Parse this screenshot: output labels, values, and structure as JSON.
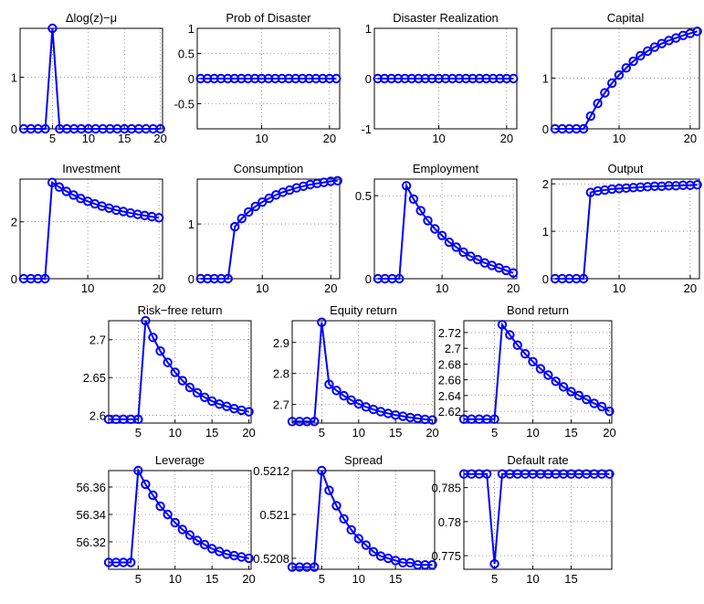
{
  "chart_data": [
    {
      "type": "line",
      "title": "Δlog(z)−μ",
      "color": "#0000ff",
      "grid": true,
      "x": [
        1,
        2,
        3,
        4,
        5,
        6,
        7,
        8,
        9,
        10,
        11,
        12,
        13,
        14,
        15,
        16,
        17,
        18,
        19,
        20
      ],
      "values": [
        0,
        0,
        0,
        0,
        1.95,
        0,
        0,
        0,
        0,
        0,
        0,
        0,
        0,
        0,
        0,
        0,
        0,
        0,
        0,
        0
      ],
      "xlim": [
        0.5,
        20.3
      ],
      "ylim": [
        0,
        1.95
      ],
      "xticks": [
        5,
        10,
        15,
        20
      ],
      "yticks": [
        0,
        1
      ]
    },
    {
      "type": "line",
      "title": "Prob of Disaster",
      "color": "#0000ff",
      "grid": true,
      "x": [
        1,
        2,
        3,
        4,
        5,
        6,
        7,
        8,
        9,
        10,
        11,
        12,
        13,
        14,
        15,
        16,
        17,
        18,
        19,
        20,
        21
      ],
      "values": [
        0,
        0,
        0,
        0,
        0,
        0,
        0,
        0,
        0,
        0,
        0,
        0,
        0,
        0,
        0,
        0,
        0,
        0,
        0,
        0,
        0
      ],
      "xlim": [
        0.5,
        21.5
      ],
      "ylim": [
        -1,
        1
      ],
      "xticks": [
        10,
        20
      ],
      "yticks": [
        -0.5,
        0,
        0.5,
        1
      ]
    },
    {
      "type": "line",
      "title": "Disaster Realization",
      "color": "#0000ff",
      "grid": true,
      "x": [
        1,
        2,
        3,
        4,
        5,
        6,
        7,
        8,
        9,
        10,
        11,
        12,
        13,
        14,
        15,
        16,
        17,
        18,
        19,
        20,
        21
      ],
      "values": [
        0,
        0,
        0,
        0,
        0,
        0,
        0,
        0,
        0,
        0,
        0,
        0,
        0,
        0,
        0,
        0,
        0,
        0,
        0,
        0,
        0
      ],
      "xlim": [
        0.5,
        21.5
      ],
      "ylim": [
        -1,
        1
      ],
      "xticks": [
        10,
        20
      ],
      "yticks": [
        -1,
        0,
        1
      ]
    },
    {
      "type": "line",
      "title": "Capital",
      "color": "#0000ff",
      "grid": true,
      "x": [
        1,
        2,
        3,
        4,
        5,
        6,
        7,
        8,
        9,
        10,
        11,
        12,
        13,
        14,
        15,
        16,
        17,
        18,
        19,
        20,
        21
      ],
      "values": [
        0,
        0,
        0,
        0,
        0,
        0.25,
        0.5,
        0.71,
        0.9,
        1.06,
        1.2,
        1.33,
        1.44,
        1.53,
        1.61,
        1.68,
        1.74,
        1.79,
        1.84,
        1.88,
        1.92
      ],
      "xlim": [
        0.5,
        21.3
      ],
      "ylim": [
        0,
        1.98
      ],
      "xticks": [
        10,
        20
      ],
      "yticks": [
        0,
        1
      ]
    },
    {
      "type": "line",
      "title": "Investment",
      "color": "#0000ff",
      "grid": true,
      "x": [
        1,
        2,
        3,
        4,
        5,
        6,
        7,
        8,
        9,
        10,
        11,
        12,
        13,
        14,
        15,
        16,
        17,
        18,
        19,
        20
      ],
      "values": [
        0,
        0,
        0,
        0,
        3.38,
        3.22,
        3.07,
        2.94,
        2.82,
        2.72,
        2.63,
        2.55,
        2.48,
        2.41,
        2.36,
        2.31,
        2.26,
        2.22,
        2.18,
        2.14
      ],
      "xlim": [
        0.5,
        20.5
      ],
      "ylim": [
        0,
        3.5
      ],
      "xticks": [
        10,
        20
      ],
      "yticks": [
        0,
        2
      ]
    },
    {
      "type": "line",
      "title": "Consumption",
      "color": "#0000ff",
      "grid": true,
      "x": [
        1,
        2,
        3,
        4,
        5,
        6,
        7,
        8,
        9,
        10,
        11,
        12,
        13,
        14,
        15,
        16,
        17,
        18,
        19,
        20,
        21
      ],
      "values": [
        0,
        0,
        0,
        0,
        0,
        0.95,
        1.1,
        1.22,
        1.32,
        1.4,
        1.47,
        1.53,
        1.58,
        1.62,
        1.66,
        1.69,
        1.72,
        1.74,
        1.76,
        1.78,
        1.79
      ],
      "xlim": [
        0.5,
        21.3
      ],
      "ylim": [
        0,
        1.82
      ],
      "xticks": [
        10,
        20
      ],
      "yticks": [
        0,
        1
      ]
    },
    {
      "type": "line",
      "title": "Employment",
      "color": "#0000ff",
      "grid": true,
      "x": [
        1,
        2,
        3,
        4,
        5,
        6,
        7,
        8,
        9,
        10,
        11,
        12,
        13,
        14,
        15,
        16,
        17,
        18,
        19,
        20
      ],
      "values": [
        0,
        0,
        0,
        0,
        0.56,
        0.48,
        0.41,
        0.35,
        0.3,
        0.26,
        0.22,
        0.19,
        0.16,
        0.135,
        0.115,
        0.095,
        0.08,
        0.065,
        0.05,
        0.035
      ],
      "xlim": [
        0.5,
        20.5
      ],
      "ylim": [
        0,
        0.6
      ],
      "xticks": [
        10,
        20
      ],
      "yticks": [
        0,
        0.5
      ]
    },
    {
      "type": "line",
      "title": "Output",
      "color": "#0000ff",
      "grid": true,
      "x": [
        1,
        2,
        3,
        4,
        5,
        6,
        7,
        8,
        9,
        10,
        11,
        12,
        13,
        14,
        15,
        16,
        17,
        18,
        19,
        20,
        21
      ],
      "values": [
        0,
        0,
        0,
        0,
        0,
        1.82,
        1.85,
        1.87,
        1.89,
        1.9,
        1.91,
        1.92,
        1.93,
        1.94,
        1.95,
        1.95,
        1.96,
        1.96,
        1.97,
        1.97,
        1.98
      ],
      "xlim": [
        0.5,
        21.3
      ],
      "ylim": [
        0,
        2.1
      ],
      "xticks": [
        10,
        20
      ],
      "yticks": [
        0,
        1,
        2
      ]
    },
    {
      "type": "line",
      "title": "Risk−free return",
      "color": "#0000ff",
      "grid": true,
      "x": [
        1,
        2,
        3,
        4,
        5,
        6,
        7,
        8,
        9,
        10,
        11,
        12,
        13,
        14,
        15,
        16,
        17,
        18,
        19,
        20
      ],
      "values": [
        2.595,
        2.595,
        2.595,
        2.595,
        2.595,
        2.725,
        2.703,
        2.685,
        2.67,
        2.657,
        2.646,
        2.637,
        2.63,
        2.624,
        2.619,
        2.615,
        2.612,
        2.609,
        2.607,
        2.605
      ],
      "xlim": [
        1,
        20.3
      ],
      "ylim": [
        2.59,
        2.725
      ],
      "xticks": [
        5,
        10,
        15,
        20
      ],
      "yticks": [
        2.6,
        2.65,
        2.7
      ]
    },
    {
      "type": "line",
      "title": "Equity return",
      "color": "#0000ff",
      "grid": true,
      "x": [
        1,
        2,
        3,
        4,
        5,
        6,
        7,
        8,
        9,
        10,
        11,
        12,
        13,
        14,
        15,
        16,
        17,
        18,
        19,
        20
      ],
      "values": [
        2.645,
        2.645,
        2.645,
        2.645,
        2.965,
        2.765,
        2.745,
        2.728,
        2.714,
        2.702,
        2.692,
        2.684,
        2.677,
        2.671,
        2.666,
        2.662,
        2.658,
        2.655,
        2.652,
        2.65
      ],
      "xlim": [
        1,
        20.3
      ],
      "ylim": [
        2.64,
        2.97
      ],
      "xticks": [
        5,
        10,
        15,
        20
      ],
      "yticks": [
        2.7,
        2.8,
        2.9
      ]
    },
    {
      "type": "line",
      "title": "Bond return",
      "color": "#0000ff",
      "grid": true,
      "x": [
        1,
        2,
        3,
        4,
        5,
        6,
        7,
        8,
        9,
        10,
        11,
        12,
        13,
        14,
        15,
        16,
        17,
        18,
        19,
        20
      ],
      "values": [
        2.61,
        2.61,
        2.61,
        2.61,
        2.61,
        2.73,
        2.717,
        2.704,
        2.693,
        2.683,
        2.674,
        2.666,
        2.658,
        2.651,
        2.645,
        2.64,
        2.635,
        2.63,
        2.626,
        2.62
      ],
      "xlim": [
        1,
        20.3
      ],
      "ylim": [
        2.605,
        2.735
      ],
      "xticks": [
        5,
        10,
        15,
        20
      ],
      "yticks": [
        2.62,
        2.64,
        2.66,
        2.68,
        2.7,
        2.72
      ]
    },
    {
      "type": "line",
      "title": "Leverage",
      "color": "#0000ff",
      "grid": true,
      "x": [
        1,
        2,
        3,
        4,
        5,
        6,
        7,
        8,
        9,
        10,
        11,
        12,
        13,
        14,
        15,
        16,
        17,
        18,
        19,
        20
      ],
      "values": [
        56.305,
        56.305,
        56.305,
        56.305,
        56.372,
        56.362,
        56.354,
        56.346,
        56.34,
        56.334,
        56.329,
        56.325,
        56.321,
        56.318,
        56.315,
        56.313,
        56.311,
        56.31,
        56.309,
        56.308
      ],
      "xlim": [
        1,
        20.3
      ],
      "ylim": [
        56.3,
        56.372
      ],
      "xticks": [
        5,
        10,
        15,
        20
      ],
      "yticks": [
        56.32,
        56.34,
        56.36
      ]
    },
    {
      "type": "line",
      "title": "Spread",
      "color": "#0000ff",
      "grid": true,
      "x": [
        1,
        2,
        3,
        4,
        5,
        6,
        7,
        8,
        9,
        10,
        11,
        12,
        13,
        14,
        15,
        16,
        17,
        18,
        19,
        20
      ],
      "values": [
        0.52076,
        0.52076,
        0.52076,
        0.52076,
        0.5212,
        0.52111,
        0.52104,
        0.52098,
        0.52093,
        0.52089,
        0.52086,
        0.52083,
        0.52081,
        0.5208,
        0.52079,
        0.52078,
        0.52078,
        0.52077,
        0.52077,
        0.52077
      ],
      "xlim": [
        1,
        20.3
      ],
      "ylim": [
        0.52075,
        0.5212
      ],
      "xticks": [
        5,
        10,
        15
      ],
      "yticks": [
        0.5208,
        0.521,
        0.5212
      ]
    },
    {
      "type": "line",
      "title": "Default rate",
      "color": "#0000ff",
      "grid": true,
      "x": [
        1,
        2,
        3,
        4,
        5,
        6,
        7,
        8,
        9,
        10,
        11,
        12,
        13,
        14,
        15,
        16,
        17,
        18,
        19,
        20
      ],
      "values": [
        0.787,
        0.787,
        0.787,
        0.787,
        0.7738,
        0.787,
        0.787,
        0.787,
        0.787,
        0.787,
        0.787,
        0.787,
        0.787,
        0.787,
        0.787,
        0.787,
        0.787,
        0.787,
        0.787,
        0.787
      ],
      "xlim": [
        1,
        20.3
      ],
      "ylim": [
        0.773,
        0.7875
      ],
      "xticks": [
        5,
        10,
        15
      ],
      "yticks": [
        0.775,
        0.78,
        0.785
      ]
    }
  ]
}
